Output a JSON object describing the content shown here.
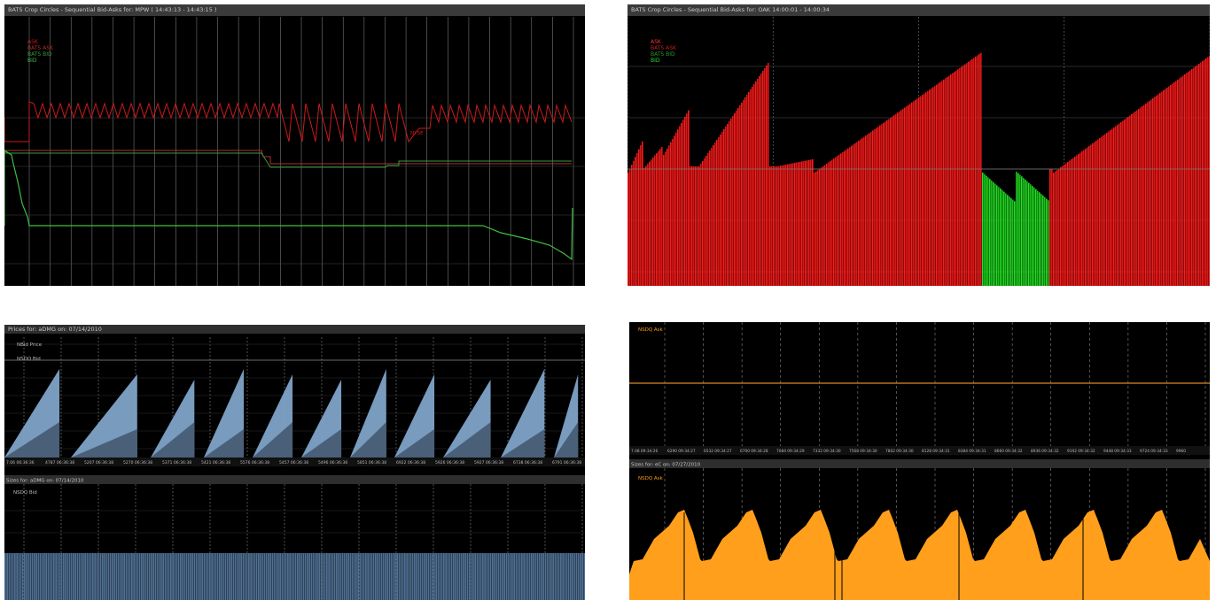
{
  "panels": [
    {
      "id": "p1",
      "title": "BATS Crop Circles - Sequential Bid-Asks for: MPW ( 14:43:13 - 14:43:15 )",
      "legend": [
        "ASK",
        "BATS ASK",
        "BATS BID",
        "BID"
      ],
      "price_annotation": "NYSE",
      "colors": {
        "ask": "#cc1a1a",
        "bats_ask": "#b03030",
        "bats_bid": "#3a9a3a",
        "bid": "#3fbf3f",
        "grid": "#777777"
      }
    },
    {
      "id": "p2",
      "title": "BATS Crop Circles - Sequential Bid-Asks for: OAK 14:00:01 - 14:00:34",
      "legend": [
        "ASK",
        "BATS ASK",
        "BATS BID",
        "BID"
      ],
      "colors": {
        "ask": "#ff1a1a",
        "bid": "#22e022",
        "grid": "#777777"
      }
    },
    {
      "id": "p3",
      "title_top": "Prices for: aDMG on: 07/14/2010",
      "legend_top": [
        "NBid Price",
        "NSDQ Bid"
      ],
      "time_ticks": [
        "7.06 06:36:36",
        "4787 06:36:38",
        "5207 06:36:38",
        "5270 06:36:38",
        "5371 06:36:38",
        "5421 06:36:38",
        "5576 06:36:38",
        "5457 06:36:38",
        "5496 06:36:38",
        "5851 06:36:38",
        "6922 06:36:38",
        "5926 06:36:38",
        "5927 06:36:38",
        "6738 06:36:38",
        "6791 06:36:38"
      ],
      "title_bottom": "Sizes for: aDMG on: 07/14/2010",
      "legend_bottom": [
        "NSDQ Bid"
      ],
      "colors": {
        "fill": "#7ea3c8",
        "dark": "#4a5f78",
        "bar": "#4f6f93",
        "grid": "#888888"
      }
    },
    {
      "id": "p4",
      "legend_top": [
        "NSDQ Ask"
      ],
      "time_ticks": [
        "7.08 09:34:26",
        "6290 09:34:27",
        "6532 09:34:27",
        "6700 09:34:28",
        "7084 09:34:29",
        "7332 09:34:30",
        "7568 09:34:30",
        "7802 09:34:30",
        "8128 09:34:31",
        "8384 09:34:31",
        "8660 09:34:32",
        "8936 09:34:32",
        "9192 09:34:32",
        "9448 09:34:33",
        "9724 09:34:33",
        "9960"
      ],
      "title_bottom": "Sizes for: eC on: 07/27/2010",
      "legend_bottom": [
        "NSDQ Ask"
      ],
      "colors": {
        "fill": "#ff9f1c",
        "line": "#d98a2a",
        "grid": "#888888"
      }
    }
  ],
  "chart_data": [
    {
      "type": "line",
      "title": "BATS Crop Circles - Sequential Bid-Asks for: MPW ( 14:43:13 - 14:43:15 )",
      "series": [
        {
          "name": "ASK",
          "note": "sawtooth oscillating between upper and lower levels",
          "values_relative": {
            "high": 0.86,
            "low": 0.72
          }
        },
        {
          "name": "BATS ASK",
          "values_relative": [
            0.66,
            0.66,
            0.62
          ]
        },
        {
          "name": "BATS BID",
          "values_relative": [
            0.66,
            0.62,
            0.64
          ]
        },
        {
          "name": "BID",
          "values_relative": [
            0.46,
            0.46,
            0.46,
            0.25
          ]
        }
      ]
    },
    {
      "type": "bar",
      "title": "BATS Crop Circles - Sequential Bid-Asks for: OAK 14:00:01 - 14:00:34",
      "series": [
        {
          "name": "ASK"
        },
        {
          "name": "BID"
        }
      ]
    },
    {
      "type": "area",
      "title": "Prices for: aDMG on: 07/14/2010",
      "series": [
        {
          "name": "NBid Price"
        },
        {
          "name": "NSDQ Bid"
        }
      ]
    },
    {
      "type": "bar",
      "title": "Sizes for: aDMG on: 07/14/2010",
      "series": [
        {
          "name": "NSDQ Bid"
        }
      ]
    },
    {
      "type": "line",
      "series": [
        {
          "name": "NSDQ Ask"
        }
      ]
    },
    {
      "type": "area",
      "title": "Sizes for: eC on: 07/27/2010",
      "series": [
        {
          "name": "NSDQ Ask"
        }
      ]
    }
  ]
}
